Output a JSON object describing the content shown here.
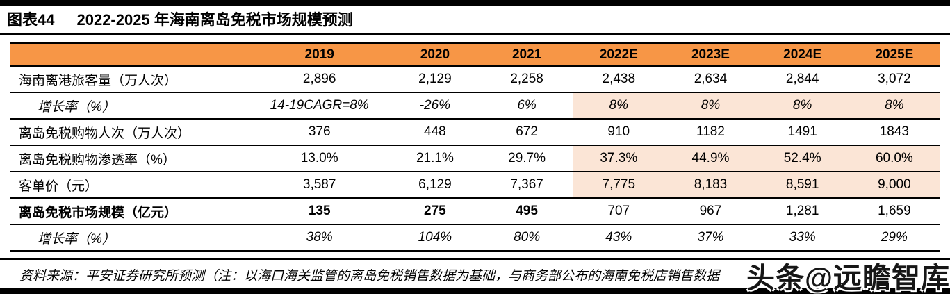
{
  "figure": {
    "tag": "图表44",
    "title": "2022-2025 年海南离岛免税市场规模预测"
  },
  "chart_data": {
    "type": "table",
    "title": "图表44 2022-2025 年海南离岛免税市场规模预测",
    "columns": [
      "",
      "2019",
      "2020",
      "2021",
      "2022E",
      "2023E",
      "2024E",
      "2025E"
    ],
    "rows": [
      {
        "label": "海南离港旅客量（万人次）",
        "values": [
          "2,896",
          "2,129",
          "2,258",
          "2,438",
          "2,634",
          "2,844",
          "3,072"
        ]
      },
      {
        "label": "增长率（%）",
        "values": [
          "14-19CAGR=8%",
          "-26%",
          "6%",
          "8%",
          "8%",
          "8%",
          "8%"
        ]
      },
      {
        "label": "离岛免税购物人次（万人次）",
        "values": [
          "376",
          "448",
          "672",
          "910",
          "1182",
          "1491",
          "1843"
        ]
      },
      {
        "label": "离岛免税购物渗透率（%）",
        "values": [
          "13.0%",
          "21.1%",
          "29.7%",
          "37.3%",
          "44.9%",
          "52.4%",
          "60.0%"
        ]
      },
      {
        "label": "客单价（元）",
        "values": [
          "3,587",
          "6,129",
          "7,367",
          "7,775",
          "8,183",
          "8,591",
          "9,000"
        ]
      },
      {
        "label": "离岛免税市场规模（亿元）",
        "values": [
          "135",
          "275",
          "495",
          "707",
          "967",
          "1,281",
          "1,659"
        ]
      },
      {
        "label": "增长率（%）",
        "values": [
          "38%",
          "104%",
          "80%",
          "43%",
          "37%",
          "33%",
          "29%"
        ]
      }
    ],
    "layout_hints": {
      "forecast_columns": [
        "2022E",
        "2023E",
        "2024E",
        "2025E"
      ],
      "highlighted_forecast_rows": [
        "增长率（%）",
        "离岛免税购物渗透率（%）",
        "客单价（元）"
      ]
    }
  },
  "footer": {
    "source": "资料来源：平安证券研究所预测（注：以海口海关监管的离岛免税销售数据为基础，与商务部公布的海南免税店销售数据"
  },
  "watermark": "头条@远瞻智库",
  "colors": {
    "header_bg": "#F79646",
    "forecast_highlight_bg": "#FBE5D6",
    "rule_color": "#000000",
    "text": "#000000"
  }
}
